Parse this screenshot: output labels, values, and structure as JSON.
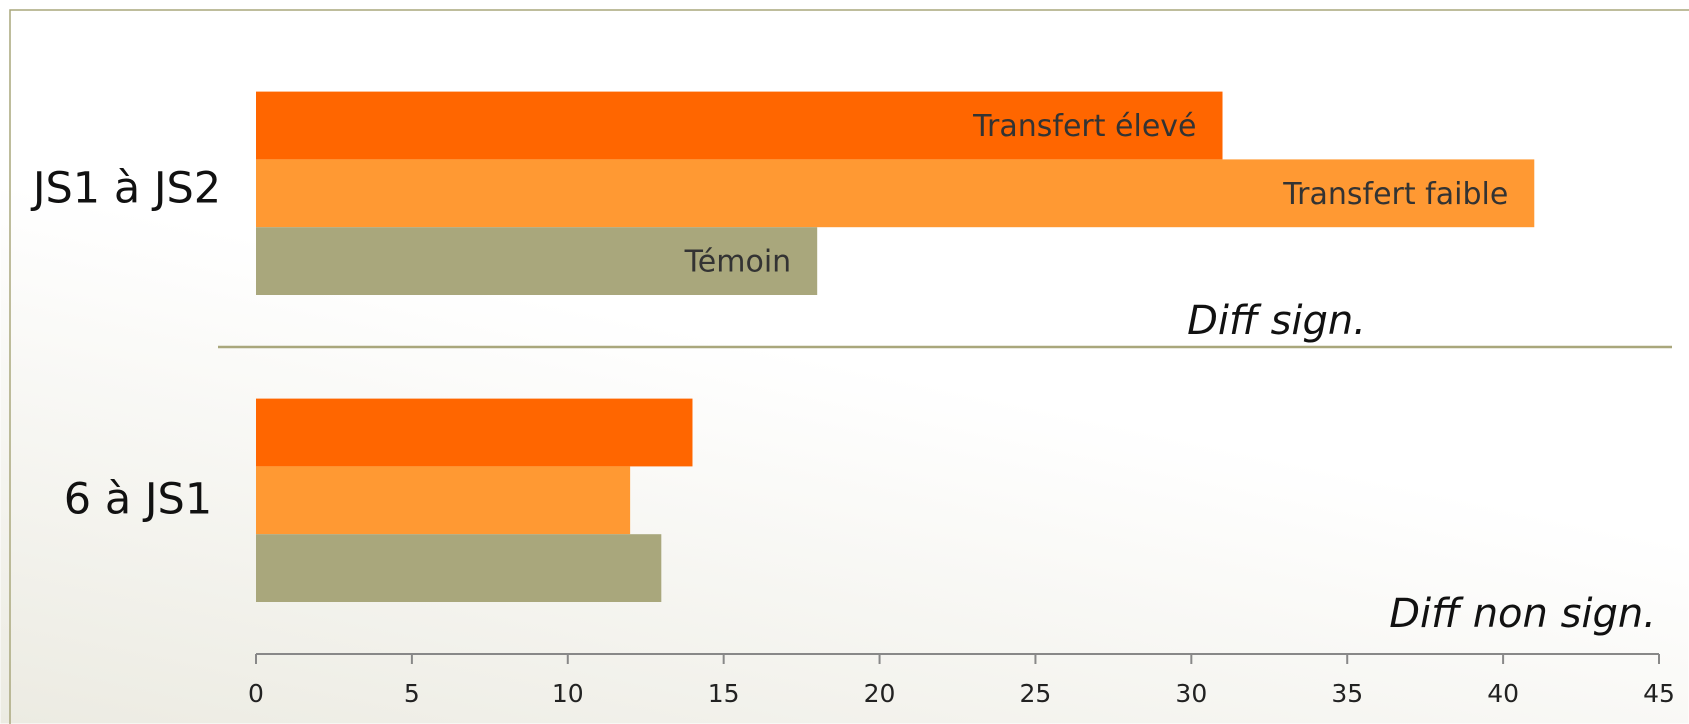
{
  "chart_data": {
    "type": "bar",
    "orientation": "horizontal",
    "categories": [
      "JS1 à JS2",
      "6 à JS1"
    ],
    "series": [
      {
        "name": "Transfert élevé",
        "color": "#FF6600",
        "values": [
          31,
          14
        ]
      },
      {
        "name": "Transfert faible",
        "color": "#FF9933",
        "values": [
          41,
          12
        ]
      },
      {
        "name": "Témoin",
        "color": "#A9A77C",
        "values": [
          18,
          13
        ]
      }
    ],
    "annotations": [
      "Diff sign.",
      "Diff non sign."
    ],
    "xlim": [
      0,
      45
    ],
    "xticks": [
      0,
      5,
      10,
      15,
      20,
      25,
      30,
      35,
      40,
      45
    ],
    "grid": false
  }
}
